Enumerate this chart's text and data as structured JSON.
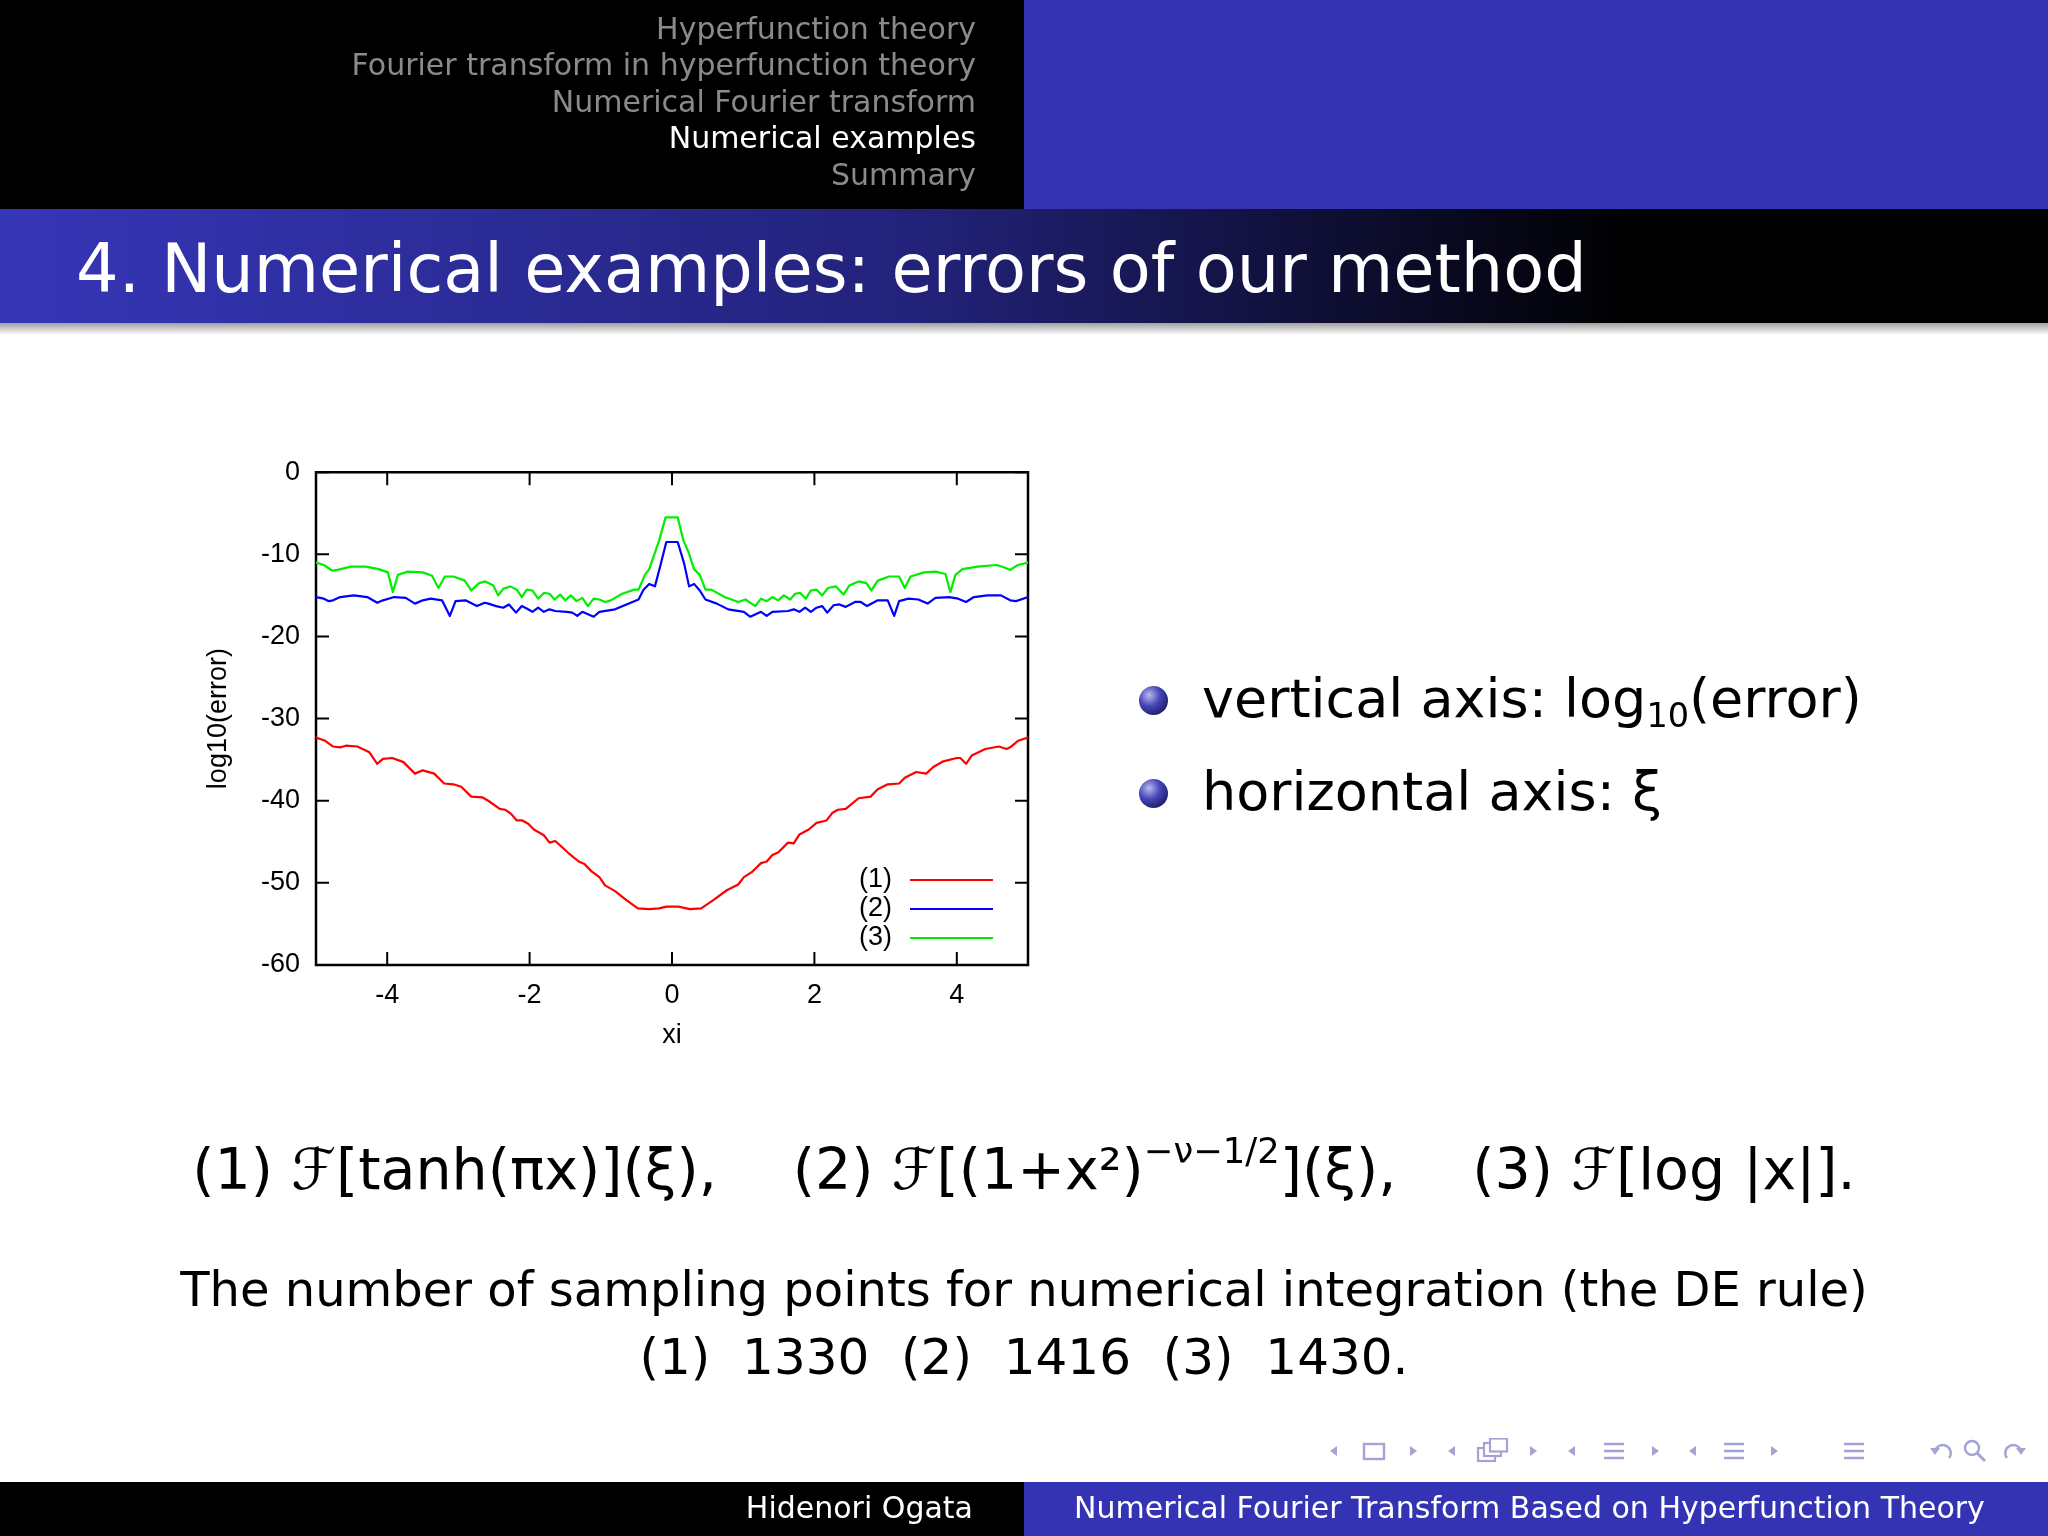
{
  "chart_data": {
    "type": "line",
    "title": "4. Numerical examples: errors of our method",
    "xlabel": "xi",
    "ylabel": "log10(error)",
    "xlim": [
      -5,
      5
    ],
    "xticks": [
      -4,
      -2,
      0,
      2,
      4
    ],
    "ylim": [
      -60,
      0
    ],
    "yticks": [
      -60,
      -50,
      -40,
      -30,
      -20,
      -10,
      0
    ],
    "grid": false,
    "legend": "bottom right",
    "marker": "none",
    "series": [
      {
        "name": "(1)",
        "color": "#ff0000",
        "x": [
          -5,
          -4.87,
          -4.76,
          -4.66,
          -4.58,
          -4.42,
          -4.25,
          -4.14,
          -4.06,
          -3.93,
          -3.77,
          -3.61,
          -3.5,
          -3.34,
          -3.2,
          -3.07,
          -2.96,
          -2.82,
          -2.66,
          -2.58,
          -2.42,
          -2.34,
          -2.26,
          -2.18,
          -2.1,
          -2.02,
          -1.94,
          -1.8,
          -1.72,
          -1.64,
          -1.45,
          -1.31,
          -1.23,
          -1.13,
          -1.02,
          -0.94,
          -0.8,
          -0.64,
          -0.48,
          -0.32,
          -0.18,
          -0.08,
          0.09,
          0.25,
          0.41,
          0.58,
          0.77,
          0.93,
          1.01,
          1.12,
          1.25,
          1.33,
          1.41,
          1.49,
          1.63,
          1.71,
          1.79,
          1.92,
          2.03,
          2.17,
          2.25,
          2.33,
          2.44,
          2.62,
          2.79,
          2.89,
          3.03,
          3.19,
          3.27,
          3.43,
          3.57,
          3.67,
          3.81,
          4,
          4.05,
          4.13,
          4.21,
          4.4,
          4.59,
          4.7,
          4.75,
          4.86,
          5
        ],
        "values": [
          -32.3,
          -32.7,
          -33.4,
          -33.5,
          -33.3,
          -33.4,
          -34.1,
          -35.5,
          -34.9,
          -34.8,
          -35.3,
          -36.7,
          -36.3,
          -36.7,
          -37.9,
          -38.0,
          -38.3,
          -39.5,
          -39.6,
          -40.0,
          -41.0,
          -41.1,
          -41.6,
          -42.4,
          -42.4,
          -42.8,
          -43.5,
          -44.2,
          -45.1,
          -44.9,
          -46.4,
          -47.4,
          -47.7,
          -48.6,
          -49.3,
          -50.3,
          -51.0,
          -52.1,
          -53.1,
          -53.2,
          -53.1,
          -52.9,
          -52.9,
          -53.2,
          -53.1,
          -52.1,
          -50.9,
          -50.2,
          -49.3,
          -48.7,
          -47.6,
          -47.4,
          -46.6,
          -46.3,
          -45.1,
          -45.2,
          -44.1,
          -43.5,
          -42.7,
          -42.4,
          -41.5,
          -41.1,
          -41.0,
          -39.7,
          -39.5,
          -38.6,
          -38.0,
          -37.9,
          -37.2,
          -36.5,
          -36.7,
          -35.9,
          -35.2,
          -34.8,
          -34.8,
          -35.5,
          -34.5,
          -33.7,
          -33.4,
          -33.7,
          -33.5,
          -32.7,
          -32.3
        ]
      },
      {
        "name": "(2)",
        "color": "#0000ff",
        "x": [
          -5,
          -4.89,
          -4.82,
          -4.76,
          -4.66,
          -4.47,
          -4.28,
          -4.14,
          -4.06,
          -3.9,
          -3.74,
          -3.61,
          -3.5,
          -3.39,
          -3.23,
          -3.12,
          -3.04,
          -2.9,
          -2.74,
          -2.63,
          -2.58,
          -2.47,
          -2.37,
          -2.29,
          -2.19,
          -2.11,
          -2.04,
          -1.96,
          -1.88,
          -1.8,
          -1.72,
          -1.64,
          -1.48,
          -1.4,
          -1.33,
          -1.26,
          -1.1,
          -1.02,
          -0.8,
          -0.64,
          -0.47,
          -0.4,
          -0.32,
          -0.24,
          -0.17,
          -0.08,
          0.08,
          0.17,
          0.24,
          0.31,
          0.39,
          0.47,
          0.63,
          0.79,
          1.01,
          1.1,
          1.25,
          1.33,
          1.41,
          1.63,
          1.71,
          1.79,
          1.87,
          1.95,
          2.03,
          2.11,
          2.18,
          2.27,
          2.35,
          2.44,
          2.57,
          2.65,
          2.74,
          2.89,
          3.03,
          3.12,
          3.19,
          3.32,
          3.46,
          3.59,
          3.7,
          3.89,
          4.02,
          4.13,
          4.24,
          4.43,
          4.62,
          4.75,
          4.83,
          5
        ],
        "values": [
          -15.2,
          -15.4,
          -15.7,
          -15.6,
          -15.2,
          -15.0,
          -15.2,
          -15.9,
          -15.6,
          -15.2,
          -15.3,
          -16.0,
          -15.6,
          -15.4,
          -15.6,
          -17.5,
          -15.7,
          -15.6,
          -16.3,
          -15.9,
          -16.0,
          -16.3,
          -16.5,
          -16.1,
          -17.1,
          -16.3,
          -16.6,
          -17.0,
          -16.5,
          -17.0,
          -16.7,
          -16.9,
          -17.0,
          -17.1,
          -17.5,
          -17.0,
          -17.6,
          -17.0,
          -16.7,
          -16.1,
          -15.5,
          -14.3,
          -13.6,
          -13.9,
          -11.6,
          -8.5,
          -8.5,
          -11.1,
          -13.9,
          -13.6,
          -14.4,
          -15.5,
          -16.0,
          -16.7,
          -17.0,
          -17.6,
          -17.0,
          -17.5,
          -17.0,
          -16.9,
          -16.7,
          -17.0,
          -16.5,
          -17.0,
          -16.5,
          -16.3,
          -17.1,
          -16.2,
          -16.1,
          -16.4,
          -15.8,
          -15.8,
          -16.3,
          -15.6,
          -15.6,
          -17.5,
          -15.7,
          -15.4,
          -15.5,
          -16.0,
          -15.3,
          -15.2,
          -15.4,
          -15.8,
          -15.2,
          -15.0,
          -15.0,
          -15.6,
          -15.7,
          -15.2
        ]
      },
      {
        "name": "(3)",
        "color": "#00ee00",
        "x": [
          -5,
          -4.89,
          -4.77,
          -4.7,
          -4.51,
          -4.3,
          -4.12,
          -3.99,
          -3.92,
          -3.85,
          -3.71,
          -3.5,
          -3.37,
          -3.28,
          -3.19,
          -3.07,
          -2.91,
          -2.82,
          -2.71,
          -2.62,
          -2.51,
          -2.44,
          -2.37,
          -2.27,
          -2.18,
          -2.11,
          -2.04,
          -1.96,
          -1.88,
          -1.8,
          -1.72,
          -1.65,
          -1.57,
          -1.5,
          -1.42,
          -1.34,
          -1.26,
          -1.18,
          -1.1,
          -1.02,
          -0.94,
          -0.86,
          -0.7,
          -0.53,
          -0.47,
          -0.38,
          -0.32,
          -0.18,
          -0.09,
          0.08,
          0.16,
          0.23,
          0.31,
          0.39,
          0.47,
          0.55,
          0.74,
          0.93,
          1.03,
          1.17,
          1.25,
          1.33,
          1.41,
          1.49,
          1.57,
          1.66,
          1.73,
          1.8,
          1.88,
          1.95,
          2.03,
          2.11,
          2.19,
          2.3,
          2.41,
          2.49,
          2.62,
          2.73,
          2.8,
          2.89,
          3.05,
          3.19,
          3.27,
          3.35,
          3.54,
          3.7,
          3.84,
          3.91,
          3.98,
          4.08,
          4.29,
          4.56,
          4.67,
          4.75,
          4.86,
          5
        ],
        "values": [
          -11.0,
          -11.3,
          -12.0,
          -11.9,
          -11.5,
          -11.5,
          -11.8,
          -12.2,
          -14.6,
          -12.5,
          -12.1,
          -12.2,
          -12.6,
          -14.1,
          -12.7,
          -12.7,
          -13.2,
          -14.4,
          -13.5,
          -13.3,
          -13.8,
          -15.0,
          -14.2,
          -13.9,
          -14.3,
          -15.2,
          -14.3,
          -14.4,
          -15.4,
          -14.7,
          -14.8,
          -15.5,
          -14.9,
          -15.6,
          -15.0,
          -15.7,
          -15.3,
          -16.3,
          -15.4,
          -15.5,
          -15.8,
          -15.6,
          -14.8,
          -14.3,
          -14.3,
          -12.5,
          -11.8,
          -8.3,
          -5.5,
          -5.5,
          -8.3,
          -9.7,
          -11.8,
          -12.5,
          -14.3,
          -14.3,
          -15.2,
          -15.8,
          -15.5,
          -16.3,
          -15.4,
          -15.7,
          -15.2,
          -15.6,
          -15.0,
          -15.5,
          -14.8,
          -14.7,
          -15.4,
          -14.4,
          -14.3,
          -15.0,
          -14.1,
          -13.9,
          -14.9,
          -13.8,
          -13.3,
          -13.5,
          -14.4,
          -13.2,
          -12.7,
          -12.7,
          -14.1,
          -12.7,
          -12.2,
          -12.1,
          -12.4,
          -14.6,
          -12.5,
          -11.8,
          -11.5,
          -11.3,
          -11.6,
          -11.9,
          -11.3,
          -11.0
        ]
      }
    ],
    "annotations": [
      "Hyperfunction theory",
      "Fourier transform in hyperfunction theory",
      "Numerical Fourier transform",
      "Numerical examples",
      "Summary",
      "vertical axis: log$_{10}$(error)",
      "horizontal axis: ξ",
      "(1) ℱ[tanh(πx)](ξ),",
      "(2) ℱ[(1+x²)$^{−ν−1/2}$](ξ),",
      "(3) ℱ[log |x|].",
      "The number of sampling points for numerical integration (the DE rule)",
      "(1)  1330  (2)  1416  (3)  1430.",
      "Hidenori Ogata",
      "Numerical Fourier Transform Based on Hyperfunction Theory"
    ]
  }
}
